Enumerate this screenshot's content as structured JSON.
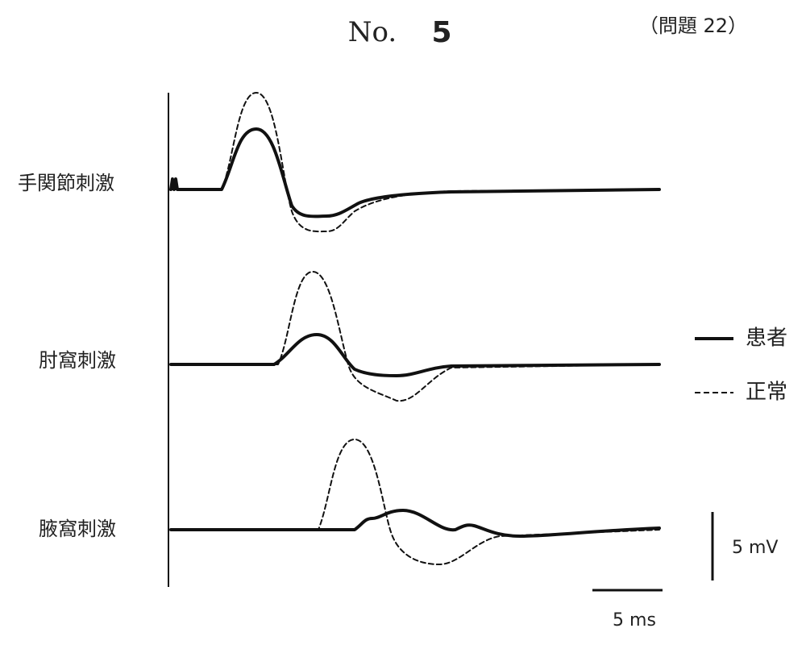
{
  "header": {
    "label": "No.",
    "number": "5",
    "question": "（問題 22）"
  },
  "traces": [
    {
      "label": "手関節刺激"
    },
    {
      "label": "肘窩刺激"
    },
    {
      "label": "腋窩刺激"
    }
  ],
  "legend": [
    {
      "label": "患者",
      "style": "solid"
    },
    {
      "label": "正常",
      "style": "dashed"
    }
  ],
  "scale_bars": {
    "voltage": "5 mV",
    "time": "5 ms"
  }
}
